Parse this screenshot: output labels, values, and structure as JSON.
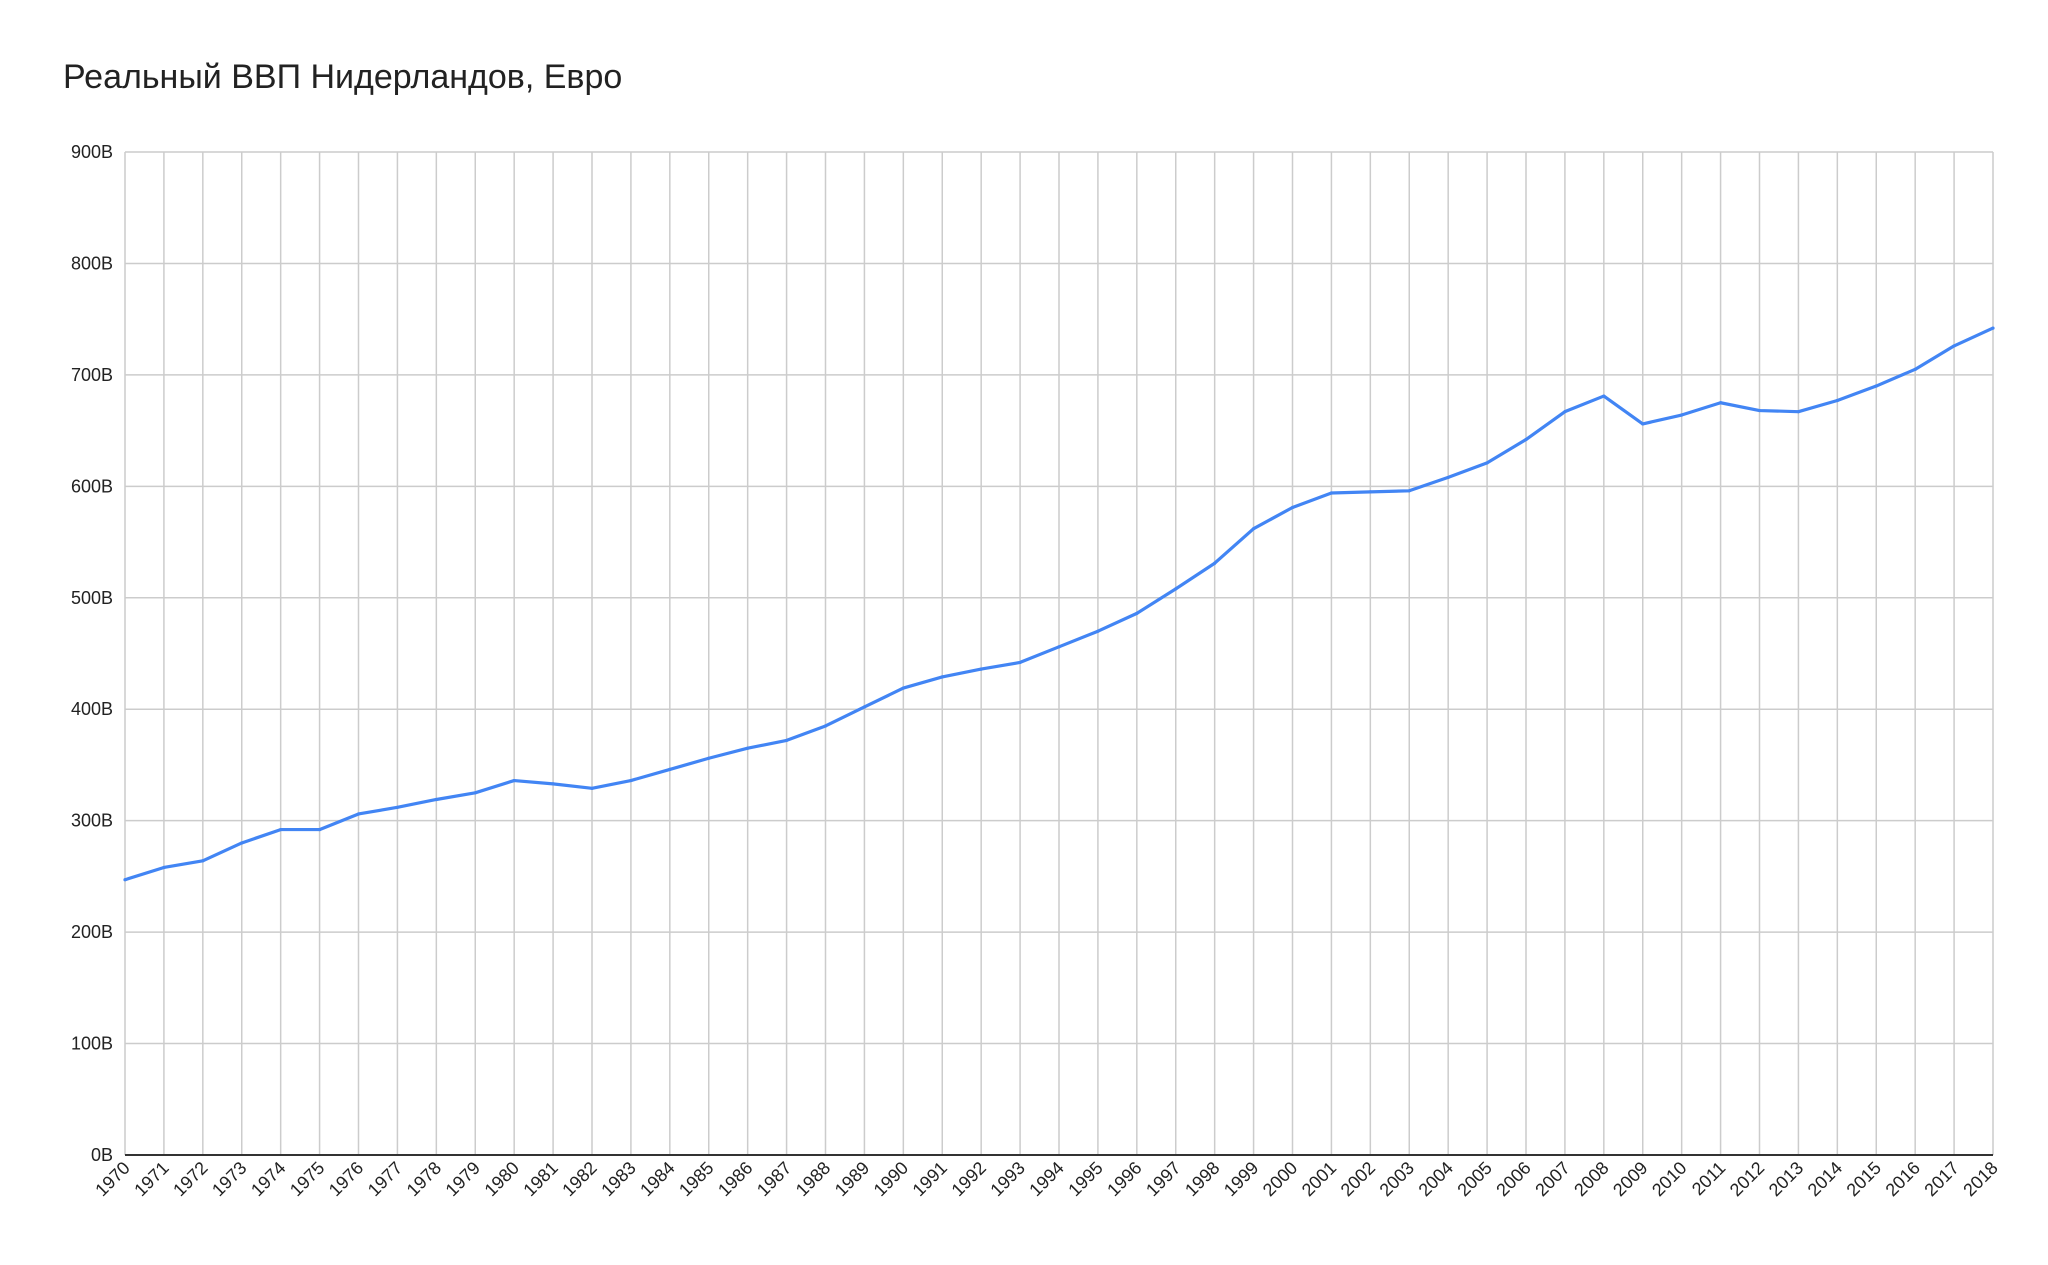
{
  "chart_data": {
    "type": "line",
    "title": "Реальный ВВП Нидерландов, Евро",
    "xlabel": "",
    "ylabel": "",
    "ylim": [
      0,
      900
    ],
    "yticks": [
      "0B",
      "100B",
      "200B",
      "300B",
      "400B",
      "500B",
      "600B",
      "700B",
      "800B",
      "900B"
    ],
    "grid": true,
    "legend": "none",
    "line_color": "#4285f4",
    "categories": [
      "1970",
      "1971",
      "1972",
      "1973",
      "1974",
      "1975",
      "1976",
      "1977",
      "1978",
      "1979",
      "1980",
      "1981",
      "1982",
      "1983",
      "1984",
      "1985",
      "1986",
      "1987",
      "1988",
      "1989",
      "1990",
      "1991",
      "1992",
      "1993",
      "1994",
      "1995",
      "1996",
      "1997",
      "1998",
      "1999",
      "2000",
      "2001",
      "2002",
      "2003",
      "2004",
      "2005",
      "2006",
      "2007",
      "2008",
      "2009",
      "2010",
      "2011",
      "2012",
      "2013",
      "2014",
      "2015",
      "2016",
      "2017",
      "2018"
    ],
    "series": [
      {
        "name": "Реальный ВВП",
        "values": [
          247,
          258,
          264,
          280,
          292,
          292,
          306,
          312,
          319,
          325,
          336,
          333,
          329,
          336,
          346,
          356,
          365,
          372,
          385,
          402,
          419,
          429,
          436,
          442,
          456,
          470,
          486,
          508,
          531,
          562,
          581,
          594,
          595,
          596,
          608,
          621,
          642,
          667,
          681,
          656,
          664,
          675,
          668,
          667,
          677,
          690,
          705,
          726,
          742
        ]
      }
    ]
  }
}
